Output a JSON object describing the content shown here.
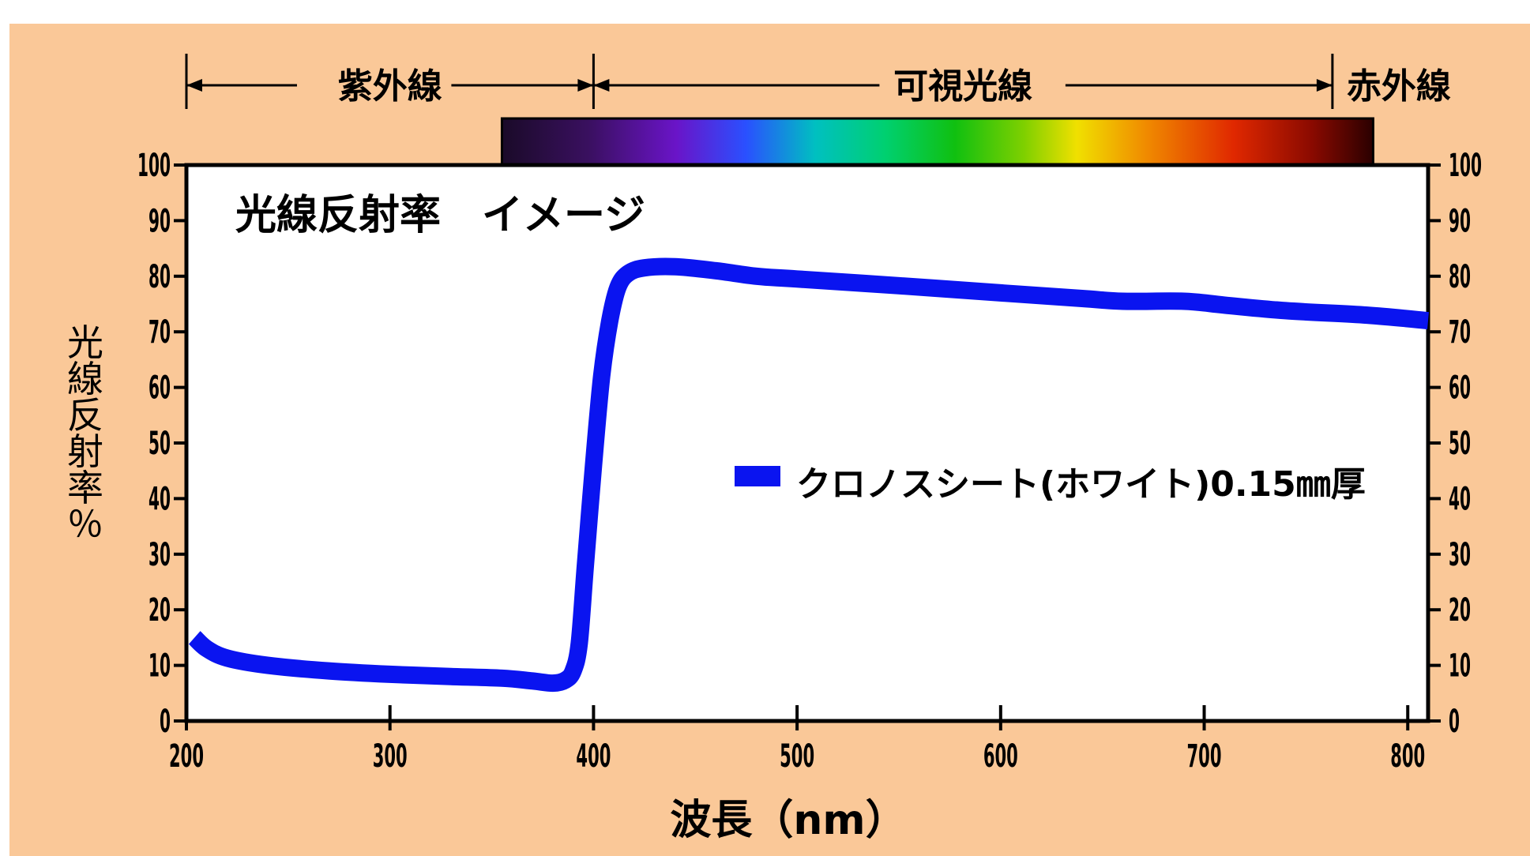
{
  "chart_data": {
    "type": "line",
    "title": "光線反射率　イメージ",
    "xlabel": "波長（nm）",
    "ylabel": "光線反射率％",
    "xlim": [
      200,
      810
    ],
    "ylim": [
      0,
      100
    ],
    "x_ticks": [
      "200",
      "300",
      "400",
      "500",
      "600",
      "700",
      "800"
    ],
    "y_ticks": [
      "0",
      "10",
      "20",
      "30",
      "40",
      "50",
      "60",
      "70",
      "80",
      "90",
      "100"
    ],
    "regions": [
      {
        "label": "紫外線",
        "from": 200,
        "to": 400
      },
      {
        "label": "可視光線",
        "from": 400,
        "to": 763
      },
      {
        "label": "赤外線",
        "from": 763
      }
    ],
    "spectrum_bar": {
      "from": 355,
      "to": 783
    },
    "legend_position": "center-right",
    "series": [
      {
        "name": "クロノスシート(ホワイト)0.15㎜厚",
        "color": "#0a14f0",
        "points": [
          [
            204,
            15
          ],
          [
            210,
            13
          ],
          [
            220,
            11.3
          ],
          [
            240,
            10
          ],
          [
            270,
            9
          ],
          [
            300,
            8.4
          ],
          [
            330,
            8
          ],
          [
            355,
            7.7
          ],
          [
            370,
            7.2
          ],
          [
            380,
            6.8
          ],
          [
            386,
            7.3
          ],
          [
            390,
            9
          ],
          [
            393,
            14
          ],
          [
            396,
            28
          ],
          [
            400,
            46
          ],
          [
            404,
            62
          ],
          [
            408,
            72
          ],
          [
            412,
            78
          ],
          [
            417,
            80.5
          ],
          [
            425,
            81.5
          ],
          [
            440,
            81.7
          ],
          [
            460,
            81
          ],
          [
            480,
            80
          ],
          [
            500,
            79.5
          ],
          [
            550,
            78.3
          ],
          [
            600,
            77
          ],
          [
            640,
            76
          ],
          [
            660,
            75.5
          ],
          [
            690,
            75.5
          ],
          [
            710,
            74.8
          ],
          [
            740,
            73.8
          ],
          [
            780,
            73
          ],
          [
            810,
            72
          ]
        ]
      }
    ]
  }
}
